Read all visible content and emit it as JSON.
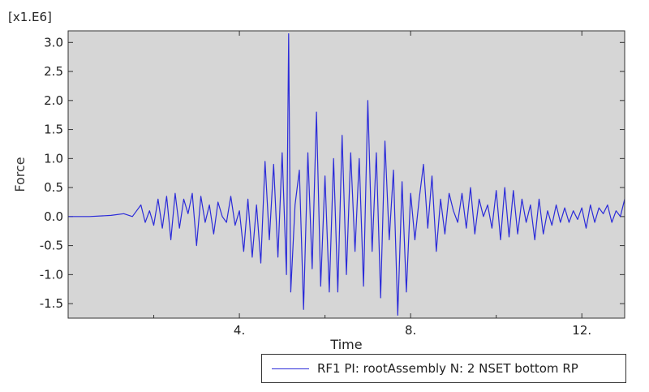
{
  "chart_data": {
    "type": "line",
    "title": "",
    "xlabel": "Time",
    "ylabel": "Force",
    "y_multiplier_label": "[x1.E6]",
    "xlim": [
      0.0,
      13.0
    ],
    "ylim": [
      -1.75,
      3.2
    ],
    "x_ticks": [
      4,
      8,
      12
    ],
    "x_tick_labels": [
      "4.",
      "8.",
      "12."
    ],
    "y_ticks": [
      -1.5,
      -1.0,
      -0.5,
      0.0,
      0.5,
      1.0,
      1.5,
      2.0,
      2.5,
      3.0
    ],
    "y_tick_labels": [
      "-1.5",
      "-1.0",
      "-0.5",
      "0.0",
      "0.5",
      "1.0",
      "1.5",
      "2.0",
      "2.5",
      "3.0"
    ],
    "grid": false,
    "plot_background": "#d6d6d6",
    "legend_position": "bottom-right",
    "series": [
      {
        "name": "RF1 PI: rootAssembly N: 2 NSET bottom RP",
        "color": "#2b2bd9",
        "x": [
          0.0,
          0.5,
          1.0,
          1.3,
          1.5,
          1.7,
          1.8,
          1.9,
          2.0,
          2.1,
          2.2,
          2.3,
          2.4,
          2.5,
          2.6,
          2.7,
          2.8,
          2.9,
          3.0,
          3.1,
          3.2,
          3.3,
          3.4,
          3.5,
          3.6,
          3.7,
          3.8,
          3.9,
          4.0,
          4.1,
          4.2,
          4.3,
          4.4,
          4.5,
          4.6,
          4.7,
          4.8,
          4.9,
          5.0,
          5.1,
          5.15,
          5.2,
          5.3,
          5.4,
          5.5,
          5.6,
          5.7,
          5.8,
          5.9,
          6.0,
          6.1,
          6.2,
          6.3,
          6.4,
          6.5,
          6.6,
          6.7,
          6.8,
          6.9,
          7.0,
          7.1,
          7.2,
          7.3,
          7.4,
          7.5,
          7.6,
          7.7,
          7.8,
          7.9,
          8.0,
          8.1,
          8.2,
          8.3,
          8.4,
          8.5,
          8.6,
          8.7,
          8.8,
          8.9,
          9.0,
          9.1,
          9.2,
          9.3,
          9.4,
          9.5,
          9.6,
          9.7,
          9.8,
          9.9,
          10.0,
          10.1,
          10.2,
          10.3,
          10.4,
          10.5,
          10.6,
          10.7,
          10.8,
          10.9,
          11.0,
          11.1,
          11.2,
          11.3,
          11.4,
          11.5,
          11.6,
          11.7,
          11.8,
          11.9,
          12.0,
          12.1,
          12.2,
          12.3,
          12.4,
          12.5,
          12.6,
          12.7,
          12.8,
          12.9,
          13.0
        ],
        "y": [
          0.0,
          0.0,
          0.02,
          0.05,
          0.0,
          0.2,
          -0.1,
          0.1,
          -0.15,
          0.3,
          -0.2,
          0.35,
          -0.4,
          0.4,
          -0.2,
          0.3,
          0.05,
          0.4,
          -0.5,
          0.35,
          -0.1,
          0.2,
          -0.3,
          0.25,
          0.0,
          -0.1,
          0.35,
          -0.15,
          0.1,
          -0.6,
          0.3,
          -0.7,
          0.2,
          -0.8,
          0.95,
          -0.4,
          0.9,
          -0.7,
          1.1,
          -1.0,
          3.15,
          -1.3,
          0.2,
          0.8,
          -1.6,
          1.1,
          -0.9,
          1.8,
          -1.2,
          0.7,
          -1.3,
          1.0,
          -1.3,
          1.4,
          -1.0,
          1.1,
          -0.6,
          1.0,
          -1.2,
          2.0,
          -0.6,
          1.1,
          -1.4,
          1.3,
          -0.4,
          0.8,
          -1.7,
          0.6,
          -1.3,
          0.4,
          -0.4,
          0.3,
          0.9,
          -0.2,
          0.7,
          -0.6,
          0.3,
          -0.3,
          0.4,
          0.1,
          -0.1,
          0.4,
          -0.2,
          0.5,
          -0.3,
          0.3,
          0.0,
          0.2,
          -0.2,
          0.45,
          -0.4,
          0.5,
          -0.35,
          0.45,
          -0.3,
          0.3,
          -0.1,
          0.2,
          -0.4,
          0.3,
          -0.3,
          0.1,
          -0.15,
          0.2,
          -0.1,
          0.15,
          -0.1,
          0.1,
          -0.05,
          0.15,
          -0.2,
          0.2,
          -0.1,
          0.15,
          0.05,
          0.2,
          -0.1,
          0.1,
          0.0,
          0.3
        ]
      }
    ]
  }
}
